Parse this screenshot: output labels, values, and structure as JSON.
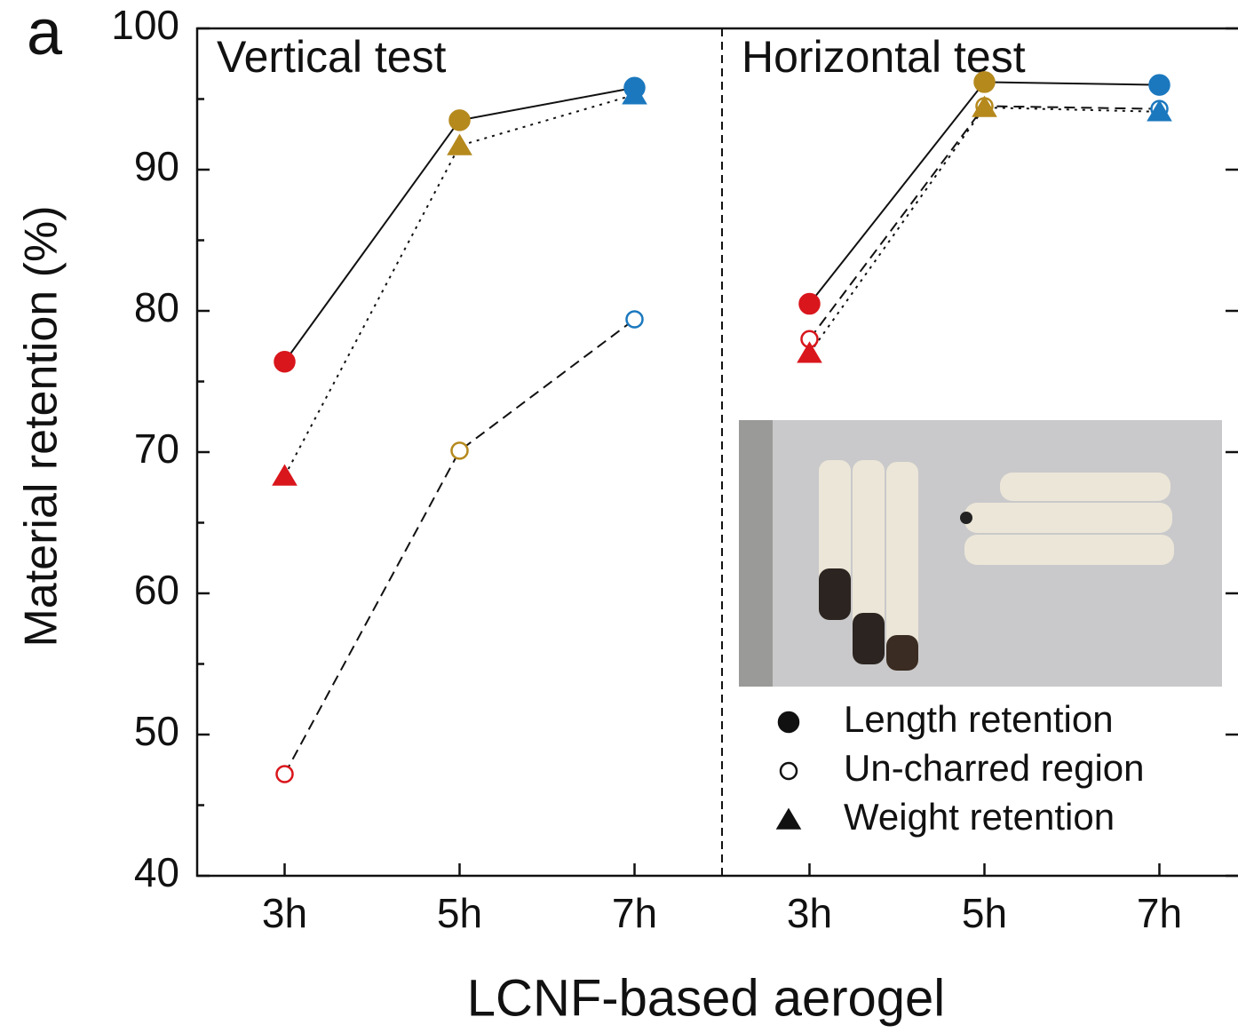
{
  "chart_data": {
    "type": "line",
    "panel_label": "a",
    "ylabel": "Material retention (%)",
    "xlabel": "LCNF-based aerogel",
    "ylim": [
      40,
      100
    ],
    "yticks": [
      40,
      50,
      60,
      70,
      80,
      90,
      100
    ],
    "yminorticks": [
      45,
      55,
      65,
      75,
      85,
      95
    ],
    "category_colors": [
      "#d9161c",
      "#b5891c",
      "#1b78be"
    ],
    "series_styles": [
      {
        "name": "Length retention",
        "marker": "circle",
        "filled": true,
        "dash": "solid"
      },
      {
        "name": "Un-charred region",
        "marker": "circle",
        "filled": false,
        "dash": "dashed"
      },
      {
        "name": "Weight retention",
        "marker": "triangle",
        "filled": true,
        "dash": "dotted"
      }
    ],
    "panels": [
      {
        "title": "Vertical test",
        "categories": [
          "3h",
          "5h",
          "7h"
        ],
        "series": [
          {
            "values": [
              76.4,
              93.5,
              95.8
            ]
          },
          {
            "values": [
              47.2,
              70.1,
              79.4
            ]
          },
          {
            "values": [
              68.3,
              91.7,
              95.3
            ]
          }
        ]
      },
      {
        "title": "Horizontal test",
        "categories": [
          "3h",
          "5h",
          "7h"
        ],
        "series": [
          {
            "values": [
              80.5,
              96.2,
              96.0
            ]
          },
          {
            "values": [
              78.0,
              94.5,
              94.3
            ]
          },
          {
            "values": [
              77.0,
              94.4,
              94.1
            ]
          }
        ]
      }
    ]
  }
}
